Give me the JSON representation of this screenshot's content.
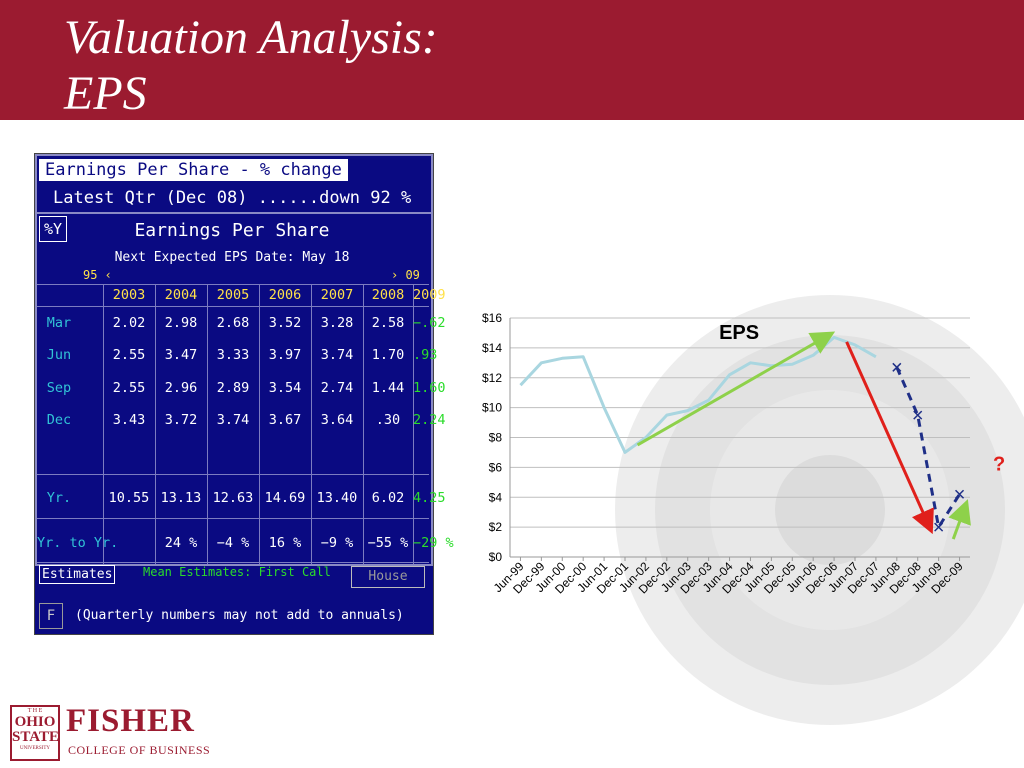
{
  "slide": {
    "title_line1": "Valuation Analysis:",
    "title_line2": "EPS"
  },
  "terminal": {
    "title": "Earnings Per Share - % change",
    "latest": "Latest Qtr (Dec 08) ......down 92 %",
    "pct_y_button": "%Y",
    "header": "Earnings Per Share",
    "next_date": "Next Expected EPS Date: May 18",
    "range_start": "95 ‹",
    "range_end": "› 09",
    "years": [
      "2003",
      "2004",
      "2005",
      "2006",
      "2007",
      "2008",
      "2009"
    ],
    "rows": [
      {
        "label": "Mar",
        "values": [
          "2.02",
          "2.98",
          "2.68",
          "3.52",
          "3.28",
          "2.58",
          "−.62"
        ]
      },
      {
        "label": "Jun",
        "values": [
          "2.55",
          "3.47",
          "3.33",
          "3.97",
          "3.74",
          "1.70",
          ".93"
        ]
      },
      {
        "label": "Sep",
        "values": [
          "2.55",
          "2.96",
          "2.89",
          "3.54",
          "2.74",
          "1.44",
          "1.60"
        ]
      },
      {
        "label": "Dec",
        "values": [
          "3.43",
          "3.72",
          "3.74",
          "3.67",
          "3.64",
          ".30",
          "2.24"
        ]
      }
    ],
    "yr_row": {
      "label": "Yr.",
      "values": [
        "10.55",
        "13.13",
        "12.63",
        "14.69",
        "13.40",
        "6.02",
        "4.25"
      ]
    },
    "yr_to_yr_row": {
      "label": "Yr. to Yr.",
      "values": [
        "24 %",
        "−4 %",
        "16 %",
        "−9 %",
        "−55 %",
        "−29 %"
      ]
    },
    "estimates_button": "Estimates",
    "mean_estimates": "Mean Estimates: First Call",
    "house_button": "House",
    "f_button": "F",
    "note": "(Quarterly numbers may not add to annuals)",
    "colors": {
      "background": "#0a0a82",
      "label": "#ffe14a",
      "value": "#ffffff",
      "estimate": "#2bdc2b",
      "row_label": "#31c3d6"
    }
  },
  "chart_data": {
    "type": "line",
    "title": "",
    "annotation_eps": "EPS",
    "annotation_question": "?",
    "xlabel": "",
    "ylabel": "",
    "ylim": [
      0,
      16
    ],
    "y_ticks": [
      "$0",
      "$2",
      "$4",
      "$6",
      "$8",
      "$10",
      "$12",
      "$14",
      "$16"
    ],
    "y_tick_values": [
      0,
      2,
      4,
      6,
      8,
      10,
      12,
      14,
      16
    ],
    "categories": [
      "Jun-99",
      "Dec-99",
      "Jun-00",
      "Dec-00",
      "Jun-01",
      "Dec-01",
      "Jun-02",
      "Dec-02",
      "Jun-03",
      "Dec-03",
      "Jun-04",
      "Dec-04",
      "Jun-05",
      "Dec-05",
      "Jun-06",
      "Dec-06",
      "Jun-07",
      "Dec-07",
      "Jun-08",
      "Dec-08",
      "Jun-09",
      "Dec-09"
    ],
    "grid": true,
    "series": [
      {
        "values": [
          11.5,
          13.0,
          13.3,
          13.4,
          10.0,
          7.0,
          8.0,
          9.5,
          9.8,
          10.5,
          12.2,
          13.0,
          12.8,
          12.9,
          13.5,
          14.7,
          14.2,
          13.4,
          null,
          null,
          null,
          null
        ]
      },
      {
        "values": [
          null,
          null,
          null,
          null,
          null,
          null,
          null,
          null,
          null,
          null,
          null,
          null,
          null,
          null,
          null,
          null,
          null,
          null,
          12.7,
          9.5,
          2.0,
          4.2
        ]
      }
    ],
    "arrows": [
      {
        "color": "#8ed14a",
        "from": [
          5.6,
          7.5
        ],
        "to": [
          14.8,
          14.9
        ]
      },
      {
        "color": "#e0201b",
        "from": [
          15.6,
          14.4
        ],
        "to": [
          19.6,
          1.9
        ]
      },
      {
        "color": "#8ed14a",
        "from": [
          20.7,
          1.2
        ],
        "to": [
          21.3,
          3.5
        ]
      }
    ],
    "colors": {
      "actual": "#a9d6e0",
      "estimate": "#1f2f87"
    }
  }
}
